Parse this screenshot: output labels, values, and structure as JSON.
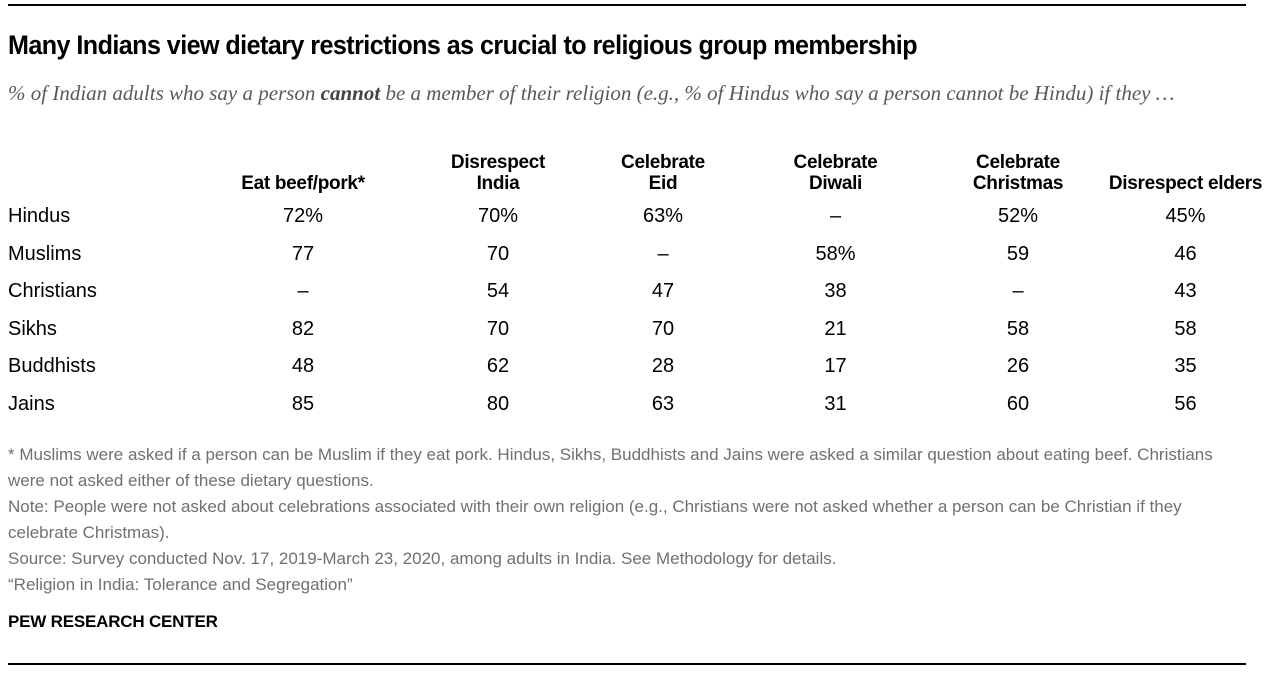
{
  "header": {
    "title": "Many Indians view dietary restrictions as crucial to religious group membership",
    "subtitle_before": "% of Indian adults who say a person ",
    "subtitle_bold": "cannot",
    "subtitle_after": " be a member of their religion (e.g., % of Hindus who say a person cannot be Hindu) if they …"
  },
  "chart_data": {
    "type": "table",
    "title": "Many Indians view dietary restrictions as crucial to religious group membership",
    "subtitle": "% of Indian adults who say a person cannot be a member of their religion (e.g., % of Hindus who say a person cannot be Hindu) if they …",
    "columns": [
      "",
      "Eat beef/pork*",
      "Disrespect India",
      "Celebrate Eid",
      "Celebrate Diwali",
      "Celebrate Christmas",
      "Disrespect elders"
    ],
    "column_lines": [
      [
        "",
        ""
      ],
      [
        "",
        "Eat beef/pork*"
      ],
      [
        "Disrespect",
        "India"
      ],
      [
        "Celebrate",
        "Eid"
      ],
      [
        "Celebrate",
        "Diwali"
      ],
      [
        "Celebrate",
        "Christmas"
      ],
      [
        "",
        "Disrespect elders"
      ]
    ],
    "rows": [
      {
        "label": "Hindus",
        "cells": [
          "72%",
          "70%",
          "63%",
          "–",
          "52%",
          "45%"
        ]
      },
      {
        "label": "Muslims",
        "cells": [
          "77",
          "70",
          "–",
          "58%",
          "59",
          "46"
        ]
      },
      {
        "label": "Christians",
        "cells": [
          "–",
          "54",
          "47",
          "38",
          "–",
          "43"
        ]
      },
      {
        "label": "Sikhs",
        "cells": [
          "82",
          "70",
          "70",
          "21",
          "58",
          "58"
        ]
      },
      {
        "label": "Buddhists",
        "cells": [
          "48",
          "62",
          "28",
          "17",
          "26",
          "35"
        ]
      },
      {
        "label": "Jains",
        "cells": [
          "85",
          "80",
          "63",
          "31",
          "60",
          "56"
        ]
      }
    ],
    "values": {
      "Hindus": [
        72,
        70,
        63,
        null,
        52,
        45
      ],
      "Muslims": [
        77,
        70,
        null,
        58,
        59,
        46
      ],
      "Christians": [
        null,
        54,
        47,
        38,
        null,
        43
      ],
      "Sikhs": [
        82,
        70,
        70,
        21,
        58,
        58
      ],
      "Buddhists": [
        48,
        62,
        28,
        17,
        26,
        35
      ],
      "Jains": [
        85,
        80,
        63,
        31,
        60,
        56
      ]
    },
    "unit": "%"
  },
  "notes": {
    "footnote": "* Muslims were asked if a person can be Muslim if they eat pork. Hindus, Sikhs, Buddhists and Jains were asked a similar question about eating beef. Christians were not asked either of these dietary questions.",
    "note": "Note: People were not asked about celebrations associated with their own religion (e.g., Christians were not asked whether a person can be Christian if they celebrate Christmas).",
    "source": "Source: Survey conducted Nov. 17, 2019-March 23, 2020, among adults in India. See Methodology for details.",
    "report": "“Religion in India: Tolerance and Segregation”"
  },
  "brand": "PEW RESEARCH CENTER"
}
